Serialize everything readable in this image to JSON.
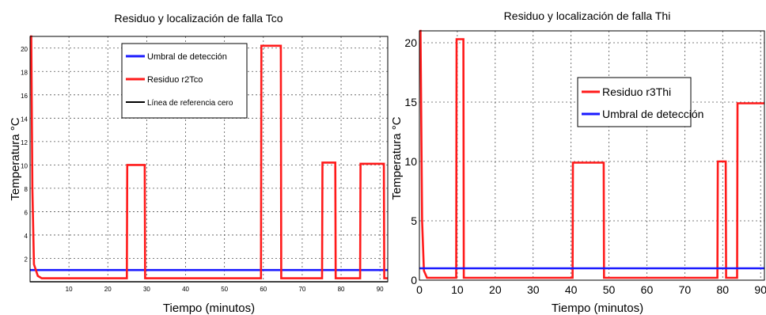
{
  "chart_data": [
    {
      "type": "line",
      "title": "Residuo y localización de falla Tco",
      "xlabel": "Tiempo (minutos)",
      "ylabel": "Temperatura °C",
      "xlim": [
        0,
        92
      ],
      "ylim": [
        0,
        21
      ],
      "xticks": [
        10,
        20,
        30,
        40,
        50,
        60,
        70,
        80,
        90
      ],
      "yticks": [
        2,
        4,
        6,
        8,
        10,
        12,
        14,
        16,
        18,
        20
      ],
      "grid": true,
      "legend_position": "top-center",
      "series": [
        {
          "name": "Umbral de detección",
          "color": "#1a1aff",
          "x": [
            0,
            92
          ],
          "y": [
            1,
            1
          ]
        },
        {
          "name": "Residuo r2Tco",
          "color": "#ff1a1a",
          "x": [
            0,
            0.3,
            0.6,
            1,
            2,
            3,
            24.9,
            25,
            29.5,
            29.6,
            59.4,
            59.5,
            64.5,
            64.6,
            75.1,
            75.2,
            78.5,
            78.6,
            84.9,
            85,
            91,
            91.1,
            92
          ],
          "y": [
            21,
            21,
            8,
            1.5,
            0.5,
            0.3,
            0.3,
            10,
            10,
            0.3,
            0.3,
            20.2,
            20.2,
            0.3,
            0.3,
            10.2,
            10.2,
            0.3,
            0.3,
            10.1,
            10.1,
            0.3,
            0.3
          ]
        },
        {
          "name": "Línea de referencia cero",
          "color": "#000000",
          "x": [
            0,
            92
          ],
          "y": [
            0,
            0
          ]
        }
      ]
    },
    {
      "type": "line",
      "title": "Residuo y localización de falla Thi",
      "xlabel": "Tiempo (minutos)",
      "ylabel": "Temperatura °C",
      "xlim": [
        0,
        91
      ],
      "ylim": [
        0,
        21
      ],
      "xticks": [
        0,
        10,
        20,
        30,
        40,
        50,
        60,
        70,
        80,
        90
      ],
      "yticks": [
        0,
        5,
        10,
        15,
        20
      ],
      "grid": true,
      "legend_position": "top-center",
      "series": [
        {
          "name": "Residuo r3Thi",
          "color": "#ff1a1a",
          "x": [
            0,
            0.3,
            0.7,
            1.2,
            2,
            9.7,
            9.8,
            11.6,
            11.7,
            40.4,
            40.5,
            48.6,
            48.7,
            78.6,
            78.7,
            80.8,
            80.9,
            83.8,
            83.9,
            91
          ],
          "y": [
            21,
            21,
            5,
            0.8,
            0.2,
            0.2,
            20.3,
            20.3,
            0.2,
            0.2,
            9.9,
            9.9,
            0.2,
            0.2,
            10,
            10,
            0.2,
            0.2,
            14.9,
            14.9
          ]
        },
        {
          "name": "Umbral de detección",
          "color": "#1a1aff",
          "x": [
            0,
            91
          ],
          "y": [
            1,
            1
          ]
        }
      ]
    }
  ]
}
